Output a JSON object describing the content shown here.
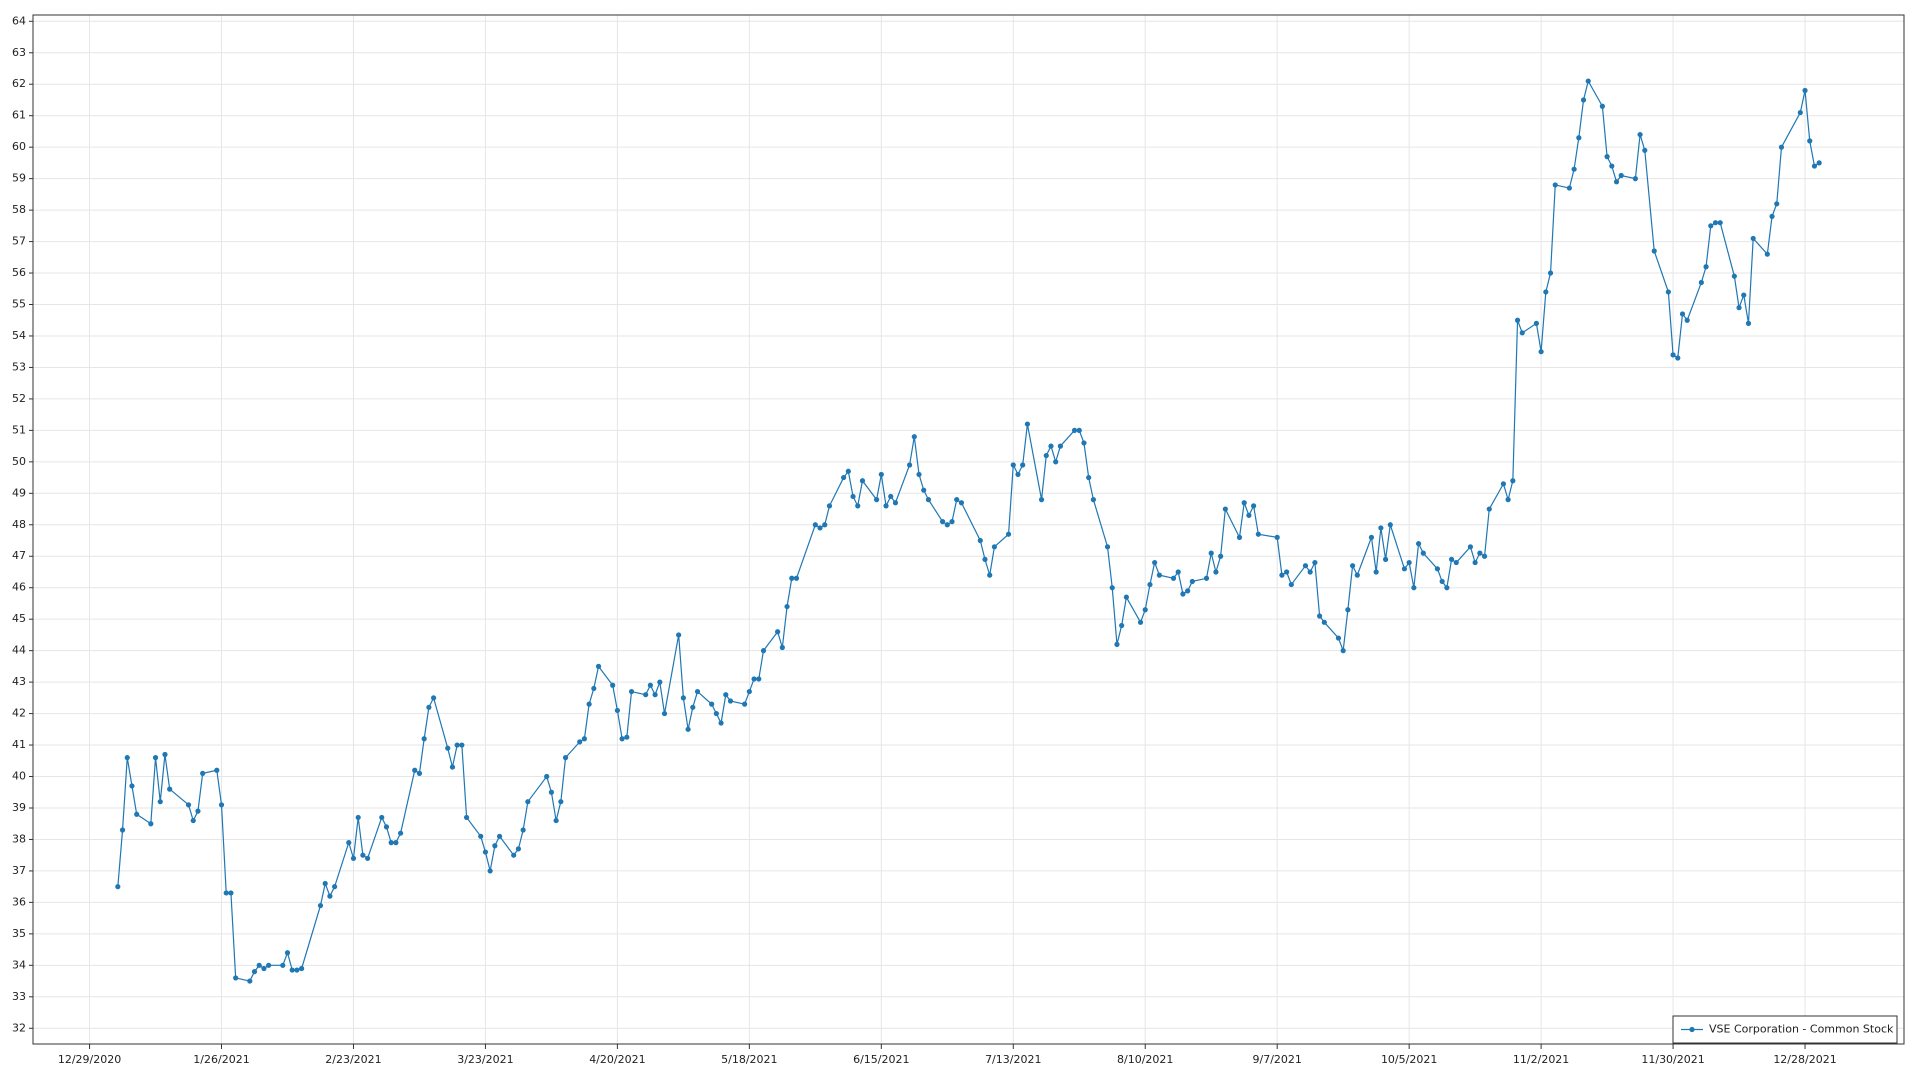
{
  "chart_data": {
    "type": "line",
    "x": [
      "1/4/2021",
      "1/5/2021",
      "1/6/2021",
      "1/7/2021",
      "1/8/2021",
      "1/11/2021",
      "1/12/2021",
      "1/13/2021",
      "1/14/2021",
      "1/15/2021",
      "1/19/2021",
      "1/20/2021",
      "1/21/2021",
      "1/22/2021",
      "1/25/2021",
      "1/26/2021",
      "1/27/2021",
      "1/28/2021",
      "1/29/2021",
      "2/1/2021",
      "2/2/2021",
      "2/3/2021",
      "2/4/2021",
      "2/5/2021",
      "2/8/2021",
      "2/9/2021",
      "2/10/2021",
      "2/11/2021",
      "2/12/2021",
      "2/16/2021",
      "2/17/2021",
      "2/18/2021",
      "2/19/2021",
      "2/22/2021",
      "2/23/2021",
      "2/24/2021",
      "2/25/2021",
      "2/26/2021",
      "3/1/2021",
      "3/2/2021",
      "3/3/2021",
      "3/4/2021",
      "3/5/2021",
      "3/8/2021",
      "3/9/2021",
      "3/10/2021",
      "3/11/2021",
      "3/12/2021",
      "3/15/2021",
      "3/16/2021",
      "3/17/2021",
      "3/18/2021",
      "3/19/2021",
      "3/22/2021",
      "3/23/2021",
      "3/24/2021",
      "3/25/2021",
      "3/26/2021",
      "3/29/2021",
      "3/30/2021",
      "3/31/2021",
      "4/1/2021",
      "4/5/2021",
      "4/6/2021",
      "4/7/2021",
      "4/8/2021",
      "4/9/2021",
      "4/12/2021",
      "4/13/2021",
      "4/14/2021",
      "4/15/2021",
      "4/16/2021",
      "4/19/2021",
      "4/20/2021",
      "4/21/2021",
      "4/22/2021",
      "4/23/2021",
      "4/26/2021",
      "4/27/2021",
      "4/28/2021",
      "4/29/2021",
      "4/30/2021",
      "5/3/2021",
      "5/4/2021",
      "5/5/2021",
      "5/6/2021",
      "5/7/2021",
      "5/10/2021",
      "5/11/2021",
      "5/12/2021",
      "5/13/2021",
      "5/14/2021",
      "5/17/2021",
      "5/18/2021",
      "5/19/2021",
      "5/20/2021",
      "5/21/2021",
      "5/24/2021",
      "5/25/2021",
      "5/26/2021",
      "5/27/2021",
      "5/28/2021",
      "6/1/2021",
      "6/2/2021",
      "6/3/2021",
      "6/4/2021",
      "6/7/2021",
      "6/8/2021",
      "6/9/2021",
      "6/10/2021",
      "6/11/2021",
      "6/14/2021",
      "6/15/2021",
      "6/16/2021",
      "6/17/2021",
      "6/18/2021",
      "6/21/2021",
      "6/22/2021",
      "6/23/2021",
      "6/24/2021",
      "6/25/2021",
      "6/28/2021",
      "6/29/2021",
      "6/30/2021",
      "7/1/2021",
      "7/2/2021",
      "7/6/2021",
      "7/7/2021",
      "7/8/2021",
      "7/9/2021",
      "7/12/2021",
      "7/13/2021",
      "7/14/2021",
      "7/15/2021",
      "7/16/2021",
      "7/19/2021",
      "7/20/2021",
      "7/21/2021",
      "7/22/2021",
      "7/23/2021",
      "7/26/2021",
      "7/27/2021",
      "7/28/2021",
      "7/29/2021",
      "7/30/2021",
      "8/2/2021",
      "8/3/2021",
      "8/4/2021",
      "8/5/2021",
      "8/6/2021",
      "8/9/2021",
      "8/10/2021",
      "8/11/2021",
      "8/12/2021",
      "8/13/2021",
      "8/16/2021",
      "8/17/2021",
      "8/18/2021",
      "8/19/2021",
      "8/20/2021",
      "8/23/2021",
      "8/24/2021",
      "8/25/2021",
      "8/26/2021",
      "8/27/2021",
      "8/30/2021",
      "8/31/2021",
      "9/1/2021",
      "9/2/2021",
      "9/3/2021",
      "9/7/2021",
      "9/8/2021",
      "9/9/2021",
      "9/10/2021",
      "9/13/2021",
      "9/14/2021",
      "9/15/2021",
      "9/16/2021",
      "9/17/2021",
      "9/20/2021",
      "9/21/2021",
      "9/22/2021",
      "9/23/2021",
      "9/24/2021",
      "9/27/2021",
      "9/28/2021",
      "9/29/2021",
      "9/30/2021",
      "10/1/2021",
      "10/4/2021",
      "10/5/2021",
      "10/6/2021",
      "10/7/2021",
      "10/8/2021",
      "10/11/2021",
      "10/12/2021",
      "10/13/2021",
      "10/14/2021",
      "10/15/2021",
      "10/18/2021",
      "10/19/2021",
      "10/20/2021",
      "10/21/2021",
      "10/22/2021",
      "10/25/2021",
      "10/26/2021",
      "10/27/2021",
      "10/28/2021",
      "10/29/2021",
      "11/1/2021",
      "11/2/2021",
      "11/3/2021",
      "11/4/2021",
      "11/5/2021",
      "11/8/2021",
      "11/9/2021",
      "11/10/2021",
      "11/11/2021",
      "11/12/2021",
      "11/15/2021",
      "11/16/2021",
      "11/17/2021",
      "11/18/2021",
      "11/19/2021",
      "11/22/2021",
      "11/23/2021",
      "11/24/2021",
      "11/26/2021",
      "11/29/2021",
      "11/30/2021",
      "12/1/2021",
      "12/2/2021",
      "12/3/2021",
      "12/6/2021",
      "12/7/2021",
      "12/8/2021",
      "12/9/2021",
      "12/10/2021",
      "12/13/2021",
      "12/14/2021",
      "12/15/2021",
      "12/16/2021",
      "12/17/2021",
      "12/20/2021",
      "12/21/2021",
      "12/22/2021",
      "12/23/2021",
      "12/27/2021",
      "12/28/2021",
      "12/29/2021",
      "12/30/2021",
      "12/31/2021"
    ],
    "series": [
      {
        "name": "VSE Corporation - Common Stock",
        "color": "#1f77b4",
        "values": [
          36.5,
          38.3,
          40.6,
          39.7,
          38.8,
          38.5,
          40.6,
          39.2,
          40.7,
          39.6,
          39.1,
          38.6,
          38.9,
          40.1,
          40.2,
          39.1,
          36.3,
          36.3,
          33.6,
          33.5,
          33.8,
          34.0,
          33.9,
          34.0,
          34.0,
          34.4,
          33.85,
          33.85,
          33.9,
          35.9,
          36.6,
          36.2,
          36.5,
          37.9,
          37.4,
          38.7,
          37.5,
          37.4,
          38.7,
          38.4,
          37.9,
          37.9,
          38.2,
          40.2,
          40.1,
          41.2,
          42.2,
          42.5,
          40.9,
          40.3,
          41.0,
          41.0,
          38.7,
          38.1,
          37.6,
          37.0,
          37.8,
          38.1,
          37.5,
          37.7,
          38.3,
          39.2,
          40.0,
          39.5,
          38.6,
          39.2,
          40.6,
          41.1,
          41.2,
          42.3,
          42.8,
          43.5,
          42.9,
          42.1,
          41.2,
          41.25,
          42.7,
          42.6,
          42.9,
          42.6,
          43.0,
          42.0,
          44.5,
          42.5,
          41.5,
          42.2,
          42.7,
          42.3,
          42.0,
          41.7,
          42.6,
          42.4,
          42.3,
          42.7,
          43.1,
          43.1,
          44.0,
          44.6,
          44.1,
          45.4,
          46.3,
          46.3,
          48.0,
          47.9,
          48.0,
          48.6,
          49.5,
          49.7,
          48.9,
          48.6,
          49.4,
          48.8,
          49.6,
          48.6,
          48.9,
          48.7,
          49.9,
          50.8,
          49.6,
          49.1,
          48.8,
          48.1,
          48.0,
          48.1,
          48.8,
          48.7,
          47.5,
          46.9,
          46.4,
          47.3,
          47.7,
          49.9,
          49.6,
          49.9,
          51.2,
          48.8,
          50.2,
          50.5,
          50.0,
          50.5,
          51.0,
          51.0,
          50.6,
          49.5,
          48.8,
          47.3,
          46.0,
          44.2,
          44.8,
          45.7,
          44.9,
          45.3,
          46.1,
          46.8,
          46.4,
          46.3,
          46.5,
          45.8,
          45.9,
          46.2,
          46.3,
          47.1,
          46.5,
          47.0,
          48.5,
          47.6,
          48.7,
          48.3,
          48.6,
          47.7,
          47.6,
          46.4,
          46.5,
          46.1,
          46.7,
          46.5,
          46.8,
          45.1,
          44.9,
          44.4,
          44.0,
          45.3,
          46.7,
          46.4,
          47.6,
          46.5,
          47.9,
          46.9,
          48.0,
          46.6,
          46.8,
          46.0,
          47.4,
          47.1,
          46.6,
          46.2,
          46.0,
          46.9,
          46.8,
          47.3,
          46.8,
          47.1,
          47.0,
          48.5,
          49.3,
          48.8,
          49.4,
          54.5,
          54.1,
          54.4,
          53.5,
          55.4,
          56.0,
          58.8,
          58.7,
          59.3,
          60.3,
          61.5,
          62.1,
          61.3,
          59.7,
          59.4,
          58.9,
          59.1,
          59.0,
          60.4,
          59.9,
          56.7,
          55.4,
          53.4,
          53.3,
          54.7,
          54.5,
          55.7,
          56.2,
          57.5,
          57.6,
          57.6,
          55.9,
          54.9,
          55.3,
          54.4,
          57.1,
          56.6,
          57.8,
          58.2,
          60.0,
          61.1,
          61.8,
          60.2,
          59.4,
          59.5
        ]
      }
    ],
    "xlim": [
      "12/17/2020",
      "1/18/2022"
    ],
    "xticks": [
      "12/29/2020",
      "1/26/2021",
      "2/23/2021",
      "3/23/2021",
      "4/20/2021",
      "5/18/2021",
      "6/15/2021",
      "7/13/2021",
      "8/10/2021",
      "9/7/2021",
      "10/5/2021",
      "11/2/2021",
      "11/30/2021",
      "12/28/2021"
    ],
    "ylim": [
      31.5,
      64.2
    ],
    "yticks": [
      32,
      33,
      34,
      35,
      36,
      37,
      38,
      39,
      40,
      41,
      42,
      43,
      44,
      45,
      46,
      47,
      48,
      49,
      50,
      51,
      52,
      53,
      54,
      55,
      56,
      57,
      58,
      59,
      60,
      61,
      62,
      63,
      64
    ],
    "grid": true,
    "legend": "lower right"
  }
}
